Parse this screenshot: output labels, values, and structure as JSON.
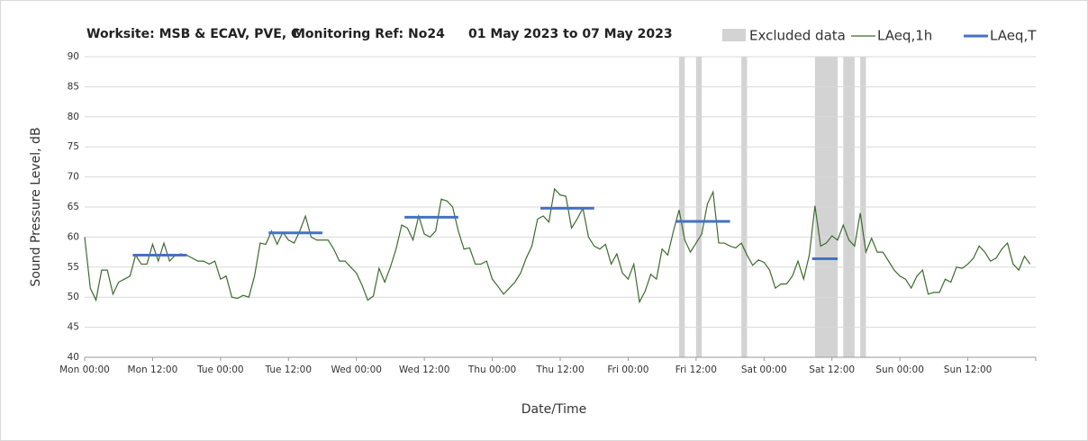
{
  "chart_data": {
    "type": "line",
    "title_parts": [
      "Worksite: MSB & ECAV, PVE, C",
      "Monitoring Ref: No24",
      "01 May 2023 to 07 May 2023"
    ],
    "xlabel": "Date/Time",
    "ylabel": "Sound Pressure Level, dB",
    "xlim": [
      0,
      168
    ],
    "ylim": [
      40,
      90
    ],
    "yticks": [
      40,
      45,
      50,
      55,
      60,
      65,
      70,
      75,
      80,
      85,
      90
    ],
    "xticks": [
      {
        "value": 0,
        "label": "Mon 00:00"
      },
      {
        "value": 12,
        "label": "Mon 12:00"
      },
      {
        "value": 24,
        "label": "Tue 00:00"
      },
      {
        "value": 36,
        "label": "Tue 12:00"
      },
      {
        "value": 48,
        "label": "Wed 00:00"
      },
      {
        "value": 60,
        "label": "Wed 12:00"
      },
      {
        "value": 72,
        "label": "Thu 00:00"
      },
      {
        "value": 84,
        "label": "Thu 12:00"
      },
      {
        "value": 96,
        "label": "Fri 00:00"
      },
      {
        "value": 108,
        "label": "Fri 12:00"
      },
      {
        "value": 120,
        "label": "Sat 00:00"
      },
      {
        "value": 132,
        "label": "Sat 12:00"
      },
      {
        "value": 144,
        "label": "Sun 00:00"
      },
      {
        "value": 156,
        "label": "Sun 12:00"
      }
    ],
    "grid": true,
    "excluded": {
      "name": "Excluded data",
      "color": "#d3d3d3",
      "x": [
        [
          105,
          106
        ],
        [
          108,
          109
        ],
        [
          116,
          117
        ],
        [
          129,
          133
        ],
        [
          134,
          136
        ],
        [
          137,
          138
        ]
      ]
    },
    "series": [
      {
        "name": "LAeq,1h",
        "color": "#3d6b2e",
        "x": [
          0,
          1,
          2,
          3,
          4,
          5,
          6,
          7,
          8,
          9,
          10,
          11,
          12,
          13,
          14,
          15,
          16,
          17,
          18,
          19,
          20,
          21,
          22,
          23,
          24,
          25,
          26,
          27,
          28,
          29,
          30,
          31,
          32,
          33,
          34,
          35,
          36,
          37,
          38,
          39,
          40,
          41,
          42,
          43,
          44,
          45,
          46,
          47,
          48,
          49,
          50,
          51,
          52,
          53,
          54,
          55,
          56,
          57,
          58,
          59,
          60,
          61,
          62,
          63,
          64,
          65,
          66,
          67,
          68,
          69,
          70,
          71,
          72,
          73,
          74,
          75,
          76,
          77,
          78,
          79,
          80,
          81,
          82,
          83,
          84,
          85,
          86,
          87,
          88,
          89,
          90,
          91,
          92,
          93,
          94,
          95,
          96,
          97,
          98,
          99,
          100,
          101,
          102,
          103,
          104,
          105,
          106,
          107,
          108,
          109,
          110,
          111,
          112,
          113,
          114,
          115,
          116,
          117,
          118,
          119,
          120,
          121,
          122,
          123,
          124,
          125,
          126,
          127,
          128,
          129,
          130,
          131,
          132,
          133,
          134,
          135,
          136,
          137,
          138,
          139,
          140,
          141,
          142,
          143,
          144,
          145,
          146,
          147,
          148,
          149,
          150,
          151,
          152,
          153,
          154,
          155,
          156,
          157,
          158,
          159,
          160,
          161,
          162,
          163,
          164,
          165,
          166,
          167
        ],
        "values": [
          60,
          51.5,
          49.5,
          54.5,
          54.5,
          50.5,
          52.5,
          53,
          53.5,
          57,
          55.5,
          55.5,
          58.8,
          56,
          59,
          56,
          57,
          57.2,
          57,
          56.5,
          56,
          56,
          55.5,
          56,
          53,
          53.5,
          50,
          49.8,
          50.3,
          50,
          53.5,
          59,
          58.8,
          61,
          58.8,
          60.8,
          59.5,
          59,
          61,
          63.5,
          60,
          59.5,
          59.5,
          59.5,
          58,
          56,
          56,
          55,
          54,
          52,
          49.5,
          50.2,
          54.8,
          52.5,
          55,
          58,
          62,
          61.5,
          59.5,
          63.5,
          60.5,
          60,
          61,
          66.3,
          66,
          65,
          61,
          58,
          58.2,
          55.5,
          55.5,
          56,
          53,
          51.8,
          50.5,
          51.5,
          52.5,
          54,
          56.5,
          58.5,
          63,
          63.5,
          62.5,
          68,
          67,
          66.8,
          61.5,
          63,
          64.8,
          60,
          58.5,
          58,
          58.8,
          55.5,
          57.2,
          54,
          53,
          55.5,
          49.2,
          51,
          53.8,
          53,
          58,
          57,
          61,
          64.5,
          59.5,
          57.5,
          59,
          60.5,
          65.5,
          67.5,
          59,
          59,
          58.5,
          58.2,
          59,
          57,
          55.3,
          56.2,
          55.8,
          54.5,
          51.5,
          52.2,
          52.2,
          53.5,
          56,
          53,
          57,
          65.2,
          58.5,
          59,
          60.2,
          59.5,
          62,
          59.5,
          58.5,
          64,
          57.5,
          59.8,
          57.5,
          57.5,
          56,
          54.5,
          53.5,
          53,
          51.5,
          53.5,
          54.5,
          50.5,
          50.8,
          50.8,
          53,
          52.5,
          55,
          54.8,
          55.5,
          56.5,
          58.5,
          57.5,
          56,
          56.5,
          58,
          59,
          55.5,
          54.5,
          56.8,
          55.5
        ]
      },
      {
        "name": "LAeq,T",
        "color": "#4472c4",
        "x": [
          [
            8.5,
            18
          ],
          [
            32.5,
            42
          ],
          [
            56.5,
            66
          ],
          [
            80.5,
            90
          ],
          [
            104.5,
            114
          ],
          [
            128.5,
            133
          ]
        ],
        "values": [
          57,
          60.7,
          63.3,
          64.8,
          62.6,
          56.4
        ]
      }
    ]
  }
}
